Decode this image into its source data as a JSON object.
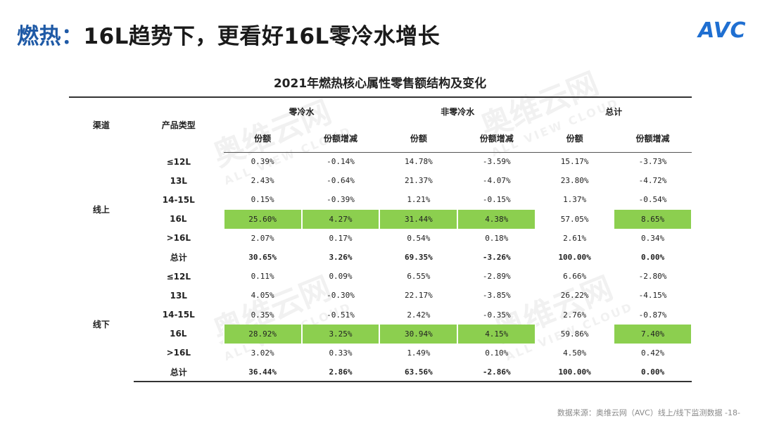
{
  "slide": {
    "title_lead": "燃热：",
    "title_rest": "16L趋势下，更看好16L零冷水增长"
  },
  "logo": {
    "text": "AVC"
  },
  "table": {
    "title": "2021年燃热核心属性零售额结构及变化",
    "header": {
      "channel": "渠道",
      "product_type": "产品类型",
      "groups": [
        "零冷水",
        "非零冷水",
        "总计"
      ],
      "sub": [
        "份额",
        "份额增减",
        "份额",
        "份额增减",
        "份额",
        "份额增减"
      ]
    },
    "sections": [
      {
        "channel": "线上",
        "rows": [
          {
            "type": "≤12L",
            "values": [
              "0.39%",
              "-0.14%",
              "14.78%",
              "-3.59%",
              "15.17%",
              "-3.73%"
            ]
          },
          {
            "type": "13L",
            "values": [
              "2.43%",
              "-0.64%",
              "21.37%",
              "-4.07%",
              "23.80%",
              "-4.72%"
            ]
          },
          {
            "type": "14-15L",
            "values": [
              "0.15%",
              "-0.39%",
              "1.21%",
              "-0.15%",
              "1.37%",
              "-0.54%"
            ]
          },
          {
            "type": "16L",
            "values": [
              "25.60%",
              "4.27%",
              "31.44%",
              "4.38%",
              "57.05%",
              "8.65%"
            ]
          },
          {
            "type": ">16L",
            "values": [
              "2.07%",
              "0.17%",
              "0.54%",
              "0.18%",
              "2.61%",
              "0.34%"
            ]
          },
          {
            "type": "总计",
            "values": [
              "30.65%",
              "3.26%",
              "69.35%",
              "-3.26%",
              "100.00%",
              "0.00%"
            ]
          }
        ]
      },
      {
        "channel": "线下",
        "rows": [
          {
            "type": "≤12L",
            "values": [
              "0.11%",
              "0.09%",
              "6.55%",
              "-2.89%",
              "6.66%",
              "-2.80%"
            ]
          },
          {
            "type": "13L",
            "values": [
              "4.05%",
              "-0.30%",
              "22.17%",
              "-3.85%",
              "26.22%",
              "-4.15%"
            ]
          },
          {
            "type": "14-15L",
            "values": [
              "0.35%",
              "-0.51%",
              "2.42%",
              "-0.35%",
              "2.76%",
              "-0.87%"
            ]
          },
          {
            "type": "16L",
            "values": [
              "28.92%",
              "3.25%",
              "30.94%",
              "4.15%",
              "59.86%",
              "7.40%"
            ]
          },
          {
            "type": ">16L",
            "values": [
              "3.02%",
              "0.33%",
              "1.49%",
              "0.10%",
              "4.50%",
              "0.42%"
            ]
          },
          {
            "type": "总计",
            "values": [
              "36.44%",
              "2.86%",
              "63.56%",
              "-2.86%",
              "100.00%",
              "0.00%"
            ]
          }
        ]
      }
    ]
  },
  "watermark": {
    "main": "奥维云网",
    "sub": "ALL VIEW CLOUD"
  },
  "source": "数据来源：奥维云网（AVC）线上/线下监测数据 -18-",
  "colors": {
    "title_accent": "#1f5aa6",
    "highlight": "#8ccf4f",
    "logo": "#1f6fd1"
  }
}
